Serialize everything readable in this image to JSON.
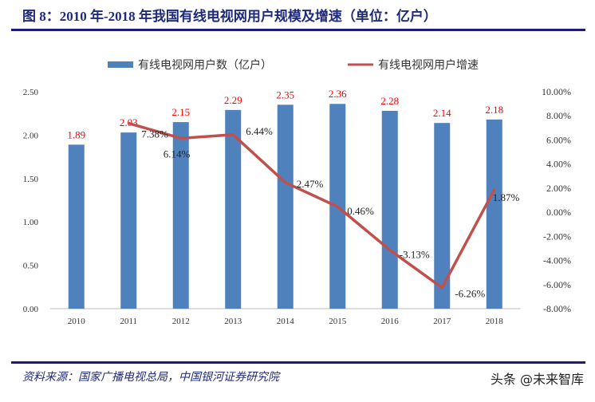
{
  "title": "图 8：2010 年-2018 年我国有线电视网用户规模及增速（单位：亿户）",
  "source": "资料来源：国家广播电视总局，中国银河证券研究院",
  "watermark": "头条 @未来智库",
  "chart_data": {
    "type": "bar+line",
    "categories": [
      "2010",
      "2011",
      "2012",
      "2013",
      "2014",
      "2015",
      "2016",
      "2017",
      "2018"
    ],
    "series": [
      {
        "name": "有线电视网用户数（亿户）",
        "type": "bar",
        "axis": "left",
        "color": "#4f81bd",
        "values": [
          1.89,
          2.03,
          2.15,
          2.29,
          2.35,
          2.36,
          2.28,
          2.14,
          2.18
        ],
        "labels": [
          "1.89",
          "2.03",
          "2.15",
          "2.29",
          "2.35",
          "2.36",
          "2.28",
          "2.14",
          "2.18"
        ]
      },
      {
        "name": "有线电视网用户增速",
        "type": "line",
        "axis": "right",
        "color": "#c0504d",
        "values": [
          null,
          7.38,
          6.14,
          6.44,
          2.47,
          0.46,
          -3.13,
          -6.26,
          1.87
        ],
        "labels": [
          "",
          "7.38%",
          "6.14%",
          "6.44%",
          "2.47%",
          "0.46%",
          "-3.13%",
          "-6.26%",
          "1.87%"
        ]
      }
    ],
    "left_axis": {
      "ylim": [
        0,
        2.5
      ],
      "ticks": [
        "0.00",
        "0.50",
        "1.00",
        "1.50",
        "2.00",
        "2.50"
      ]
    },
    "right_axis": {
      "ylim": [
        -8,
        10
      ],
      "ticks": [
        "-8.00%",
        "-6.00%",
        "-4.00%",
        "-2.00%",
        "0.00%",
        "2.00%",
        "4.00%",
        "6.00%",
        "8.00%",
        "10.00%"
      ]
    },
    "legend": "top",
    "grid": false,
    "label_color": "#ff0000"
  }
}
